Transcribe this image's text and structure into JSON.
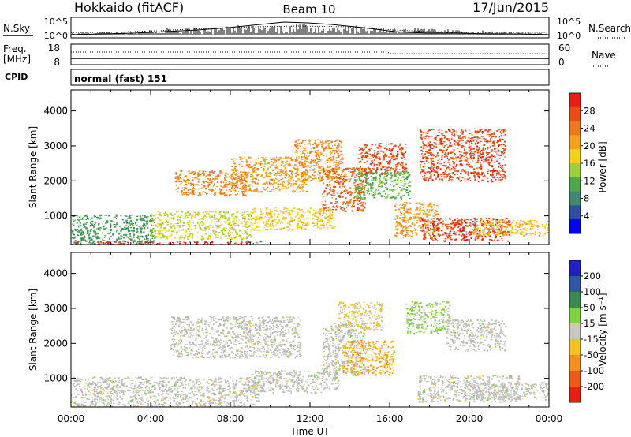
{
  "header": {
    "site": "Hokkaido (fitACF)",
    "beam": "Beam 10",
    "date": "17/Jun/2015"
  },
  "strips": {
    "nsky_label": "N.Sky",
    "nsky_ticks": [
      "10^5",
      "10^0"
    ],
    "nsearch_label": "N.Search",
    "nsearch_ticks": [
      "10^5",
      "10^0"
    ],
    "freq_label": "Freq.",
    "freq_unit": "[MHz]",
    "freq_ticks": [
      "18",
      "8"
    ],
    "nave_label": "Nave",
    "nave_ticks": [
      "60",
      "0"
    ],
    "cpid_label": "CPID",
    "cpid_value": "normal (fast) 151"
  },
  "colors": {
    "power_scale": [
      "#0000ff",
      "#2e4fa0",
      "#3f8a6e",
      "#4ea84b",
      "#9dd13c",
      "#f2d21b",
      "#f5a21a",
      "#f07818",
      "#ee4a14",
      "#e81e10"
    ],
    "velocity_scale": [
      "#2020c8",
      "#2f57a8",
      "#3a8a50",
      "#7fd33a",
      "#c8c8c0",
      "#f5c020",
      "#f58f1c",
      "#f05818",
      "#e81e10"
    ],
    "ground_scatter": "#b8b8b4"
  },
  "chart_data": [
    {
      "type": "heatmap",
      "name": "power-panel",
      "quantity": "Power",
      "colorbar_label": "Power [dB]",
      "colorbar_ticks": [
        "28",
        "24",
        "20",
        "16",
        "12",
        "8",
        "4"
      ],
      "colorbar_range": [
        0,
        30
      ],
      "xlabel": "",
      "ylabel": "Slant Range [km]",
      "xlim": [
        0,
        24
      ],
      "ylim": [
        180,
        4600
      ],
      "yticks": [
        "4000",
        "3000",
        "2000",
        "1000"
      ],
      "ytick_values": [
        4000,
        3000,
        2000,
        1000
      ],
      "regions": [
        {
          "t0": 0.0,
          "t1": 4.2,
          "r0": 200,
          "r1": 1050,
          "value": 9
        },
        {
          "t0": 4.0,
          "t1": 9.0,
          "r0": 350,
          "r1": 1150,
          "value": 15
        },
        {
          "t0": 0.0,
          "t1": 9.5,
          "r0": 190,
          "r1": 280,
          "value": 27
        },
        {
          "t0": 5.2,
          "t1": 8.8,
          "r0": 1600,
          "r1": 2300,
          "value": 22
        },
        {
          "t0": 8.0,
          "t1": 11.8,
          "r0": 1700,
          "r1": 2700,
          "value": 20
        },
        {
          "t0": 9.0,
          "t1": 13.2,
          "r0": 600,
          "r1": 1250,
          "value": 17
        },
        {
          "t0": 11.2,
          "t1": 13.6,
          "r0": 2000,
          "r1": 3200,
          "value": 21
        },
        {
          "t0": 12.6,
          "t1": 14.8,
          "r0": 1150,
          "r1": 2400,
          "value": 24
        },
        {
          "t0": 14.4,
          "t1": 16.8,
          "r0": 2200,
          "r1": 3100,
          "value": 26
        },
        {
          "t0": 14.2,
          "t1": 17.0,
          "r0": 1500,
          "r1": 2300,
          "value": 11
        },
        {
          "t0": 16.2,
          "t1": 18.4,
          "r0": 400,
          "r1": 1400,
          "value": 20
        },
        {
          "t0": 17.6,
          "t1": 22.0,
          "r0": 300,
          "r1": 950,
          "value": 27
        },
        {
          "t0": 17.5,
          "t1": 21.8,
          "r0": 2000,
          "r1": 3500,
          "value": 26
        },
        {
          "t0": 20.0,
          "t1": 24.0,
          "r0": 450,
          "r1": 900,
          "value": 18
        }
      ]
    },
    {
      "type": "heatmap",
      "name": "velocity-panel",
      "quantity": "Velocity",
      "colorbar_label": "Velocity [m s⁻¹]",
      "colorbar_ticks": [
        "200",
        "100",
        "50",
        "15",
        "-15",
        "-50",
        "-100",
        "-200"
      ],
      "colorbar_range": [
        -250,
        250
      ],
      "xlabel": "Time UT",
      "ylabel": "Slant Range [km]",
      "xlim": [
        0,
        24
      ],
      "ylim": [
        180,
        4600
      ],
      "xticks": [
        "00:00",
        "04:00",
        "08:00",
        "12:00",
        "16:00",
        "20:00",
        "00:00"
      ],
      "xtick_values": [
        0,
        4,
        8,
        12,
        16,
        20,
        24
      ],
      "yticks": [
        "4000",
        "3000",
        "2000",
        "1000"
      ],
      "ytick_values": [
        4000,
        3000,
        2000,
        1000
      ],
      "regions": [
        {
          "t0": 0.0,
          "t1": 9.5,
          "r0": 200,
          "r1": 1050,
          "value": 0
        },
        {
          "t0": 5.0,
          "t1": 11.5,
          "r0": 1600,
          "r1": 2800,
          "value": 0
        },
        {
          "t0": 9.0,
          "t1": 13.4,
          "r0": 600,
          "r1": 1250,
          "value": 0
        },
        {
          "t0": 12.6,
          "t1": 14.8,
          "r0": 1100,
          "r1": 2600,
          "value": 0
        },
        {
          "t0": 13.4,
          "t1": 15.6,
          "r0": 2400,
          "r1": 3200,
          "value": -40
        },
        {
          "t0": 13.6,
          "t1": 16.2,
          "r0": 1100,
          "r1": 2100,
          "value": -80
        },
        {
          "t0": 16.8,
          "t1": 19.0,
          "r0": 2300,
          "r1": 3200,
          "value": 40
        },
        {
          "t0": 17.4,
          "t1": 22.5,
          "r0": 350,
          "r1": 1100,
          "value": 0
        },
        {
          "t0": 18.8,
          "t1": 21.8,
          "r0": 1800,
          "r1": 2700,
          "value": 0
        },
        {
          "t0": 20.0,
          "t1": 24.0,
          "r0": 400,
          "r1": 900,
          "value": 0
        }
      ]
    }
  ]
}
